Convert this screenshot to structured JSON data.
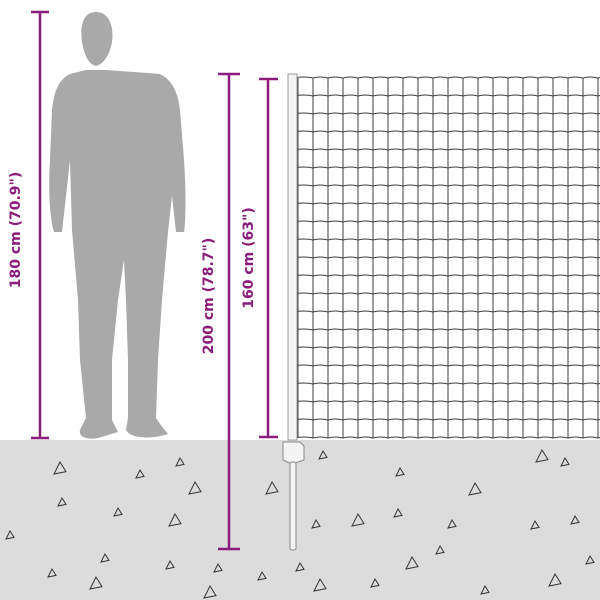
{
  "dimensions": {
    "person_height": "180 cm (70.9\")",
    "post_height": "200 cm (78.7\")",
    "net_height": "160 cm (63\")"
  },
  "colors": {
    "dimension_line": "#8a1d7c",
    "ground": "#dcdcdc",
    "silhouette": "#a9a9a9",
    "mesh": "#3a3f3a"
  }
}
